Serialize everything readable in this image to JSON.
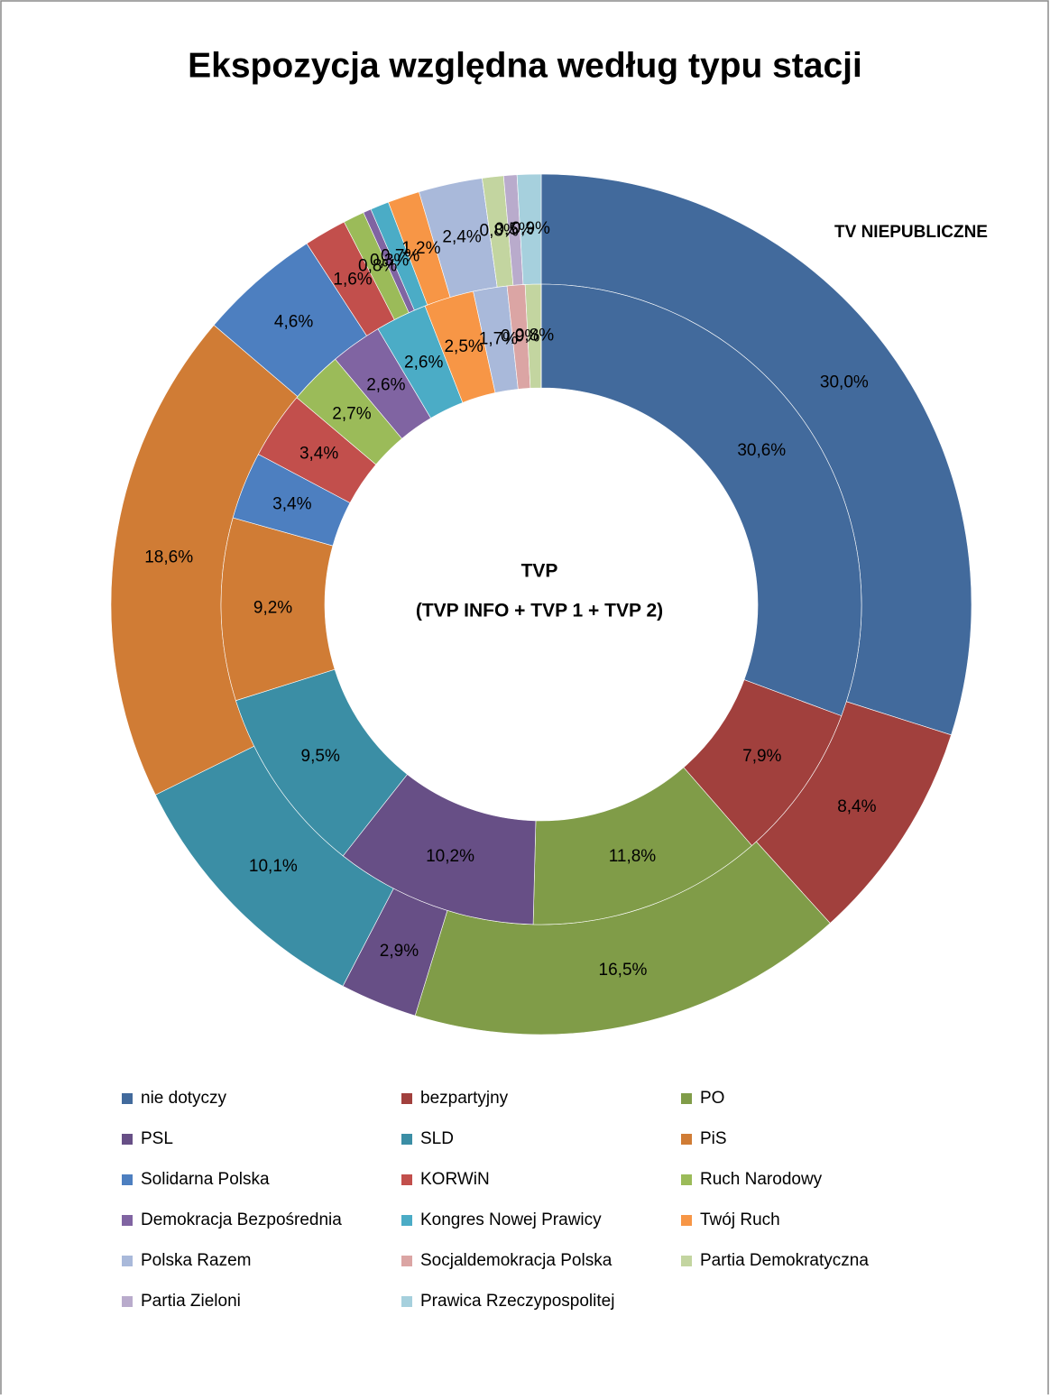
{
  "chart_data": {
    "type": "donut",
    "title": "Ekspozycja względna według typu stacji",
    "categories": [
      "nie dotyczy",
      "bezpartyjny",
      "PO",
      "PSL",
      "SLD",
      "PiS",
      "Solidarna Polska",
      "KORWiN",
      "Ruch Narodowy",
      "Demokracja Bezpośrednia",
      "Kongres Nowej Prawicy",
      "Twój Ruch",
      "Polska Razem",
      "Socjaldemokracja Polska",
      "Partia Demokratyczna",
      "Partia Zieloni",
      "Prawica Rzeczypospolitej"
    ],
    "colors": [
      "#426a9c",
      "#a1403d",
      "#809c48",
      "#674f86",
      "#3b8ea5",
      "#d07c35",
      "#4d7fc0",
      "#c24f4c",
      "#9bbb59",
      "#8064a2",
      "#4bacc6",
      "#f79646",
      "#a9b9da",
      "#dba5a4",
      "#c3d5a0",
      "#b9abcc",
      "#a6d0dd"
    ],
    "series": [
      {
        "name": "TV NIEPUBLICZNE",
        "ring": "outer",
        "values": [
          30.0,
          8.4,
          16.5,
          2.9,
          10.1,
          18.6,
          4.6,
          1.6,
          0.8,
          0.3,
          0.7,
          1.2,
          2.4,
          0,
          0.8,
          0.5,
          0.9
        ],
        "value_labels": [
          "30,0%",
          "8,4%",
          "16,5%",
          "2,9%",
          "10,1%",
          "18,6%",
          "4,6%",
          "1,6%",
          "0,8%",
          "0,3%",
          "0,7%",
          "1,2%",
          "2,4%",
          null,
          "0,8%",
          "0,5%",
          "0,9%"
        ]
      },
      {
        "name": "TVP",
        "ring": "inner",
        "values": [
          30.6,
          7.9,
          11.8,
          10.2,
          9.5,
          9.2,
          3.4,
          3.4,
          2.7,
          2.6,
          2.6,
          2.5,
          1.7,
          0.9,
          0.8,
          0,
          0
        ],
        "value_labels": [
          "30,6%",
          "7,9%",
          "11,8%",
          "10,2%",
          "9,5%",
          "9,2%",
          "3,4%",
          "3,4%",
          "2,7%",
          "2,6%",
          "2,6%",
          "2,5%",
          "1,7%",
          "0,9%",
          "0,8%",
          null,
          null
        ]
      }
    ],
    "annotations": [
      "(TVP INFO + TVP 1 + TVP 2)"
    ],
    "legend": "bottom"
  }
}
